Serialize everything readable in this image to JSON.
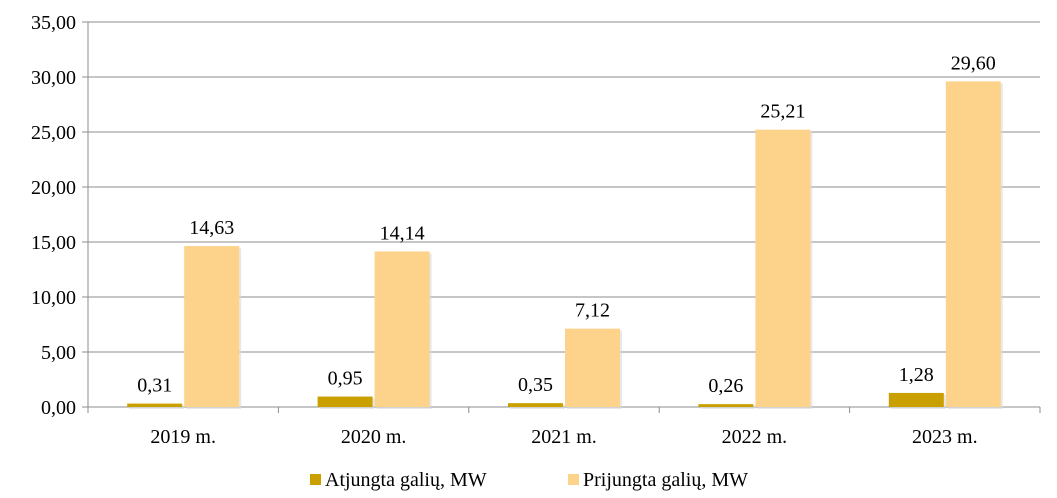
{
  "chart_data": {
    "type": "bar",
    "title": "",
    "xlabel": "",
    "ylabel": "",
    "categories": [
      "2019 m.",
      "2020 m.",
      "2021 m.",
      "2022 m.",
      "2023 m."
    ],
    "series": [
      {
        "name": "Atjungta galių, MW",
        "values": [
          0.31,
          0.95,
          0.35,
          0.26,
          1.28
        ],
        "labels": [
          "0,31",
          "0,95",
          "0,35",
          "0,26",
          "1,28"
        ],
        "color": "#C9A000"
      },
      {
        "name": "Prijungta galių, MW",
        "values": [
          14.63,
          14.14,
          7.12,
          25.21,
          29.6
        ],
        "labels": [
          "14,63",
          "14,14",
          "7,12",
          "25,21",
          "29,60"
        ],
        "color": "#FDD28A"
      }
    ],
    "ylim": [
      0,
      35
    ],
    "yticks": [
      0,
      5,
      10,
      15,
      20,
      25,
      30,
      35
    ],
    "ytick_labels": [
      "0,00",
      "5,00",
      "10,00",
      "15,00",
      "20,00",
      "25,00",
      "30,00",
      "35,00"
    ],
    "grid": true,
    "legend_position": "bottom"
  }
}
